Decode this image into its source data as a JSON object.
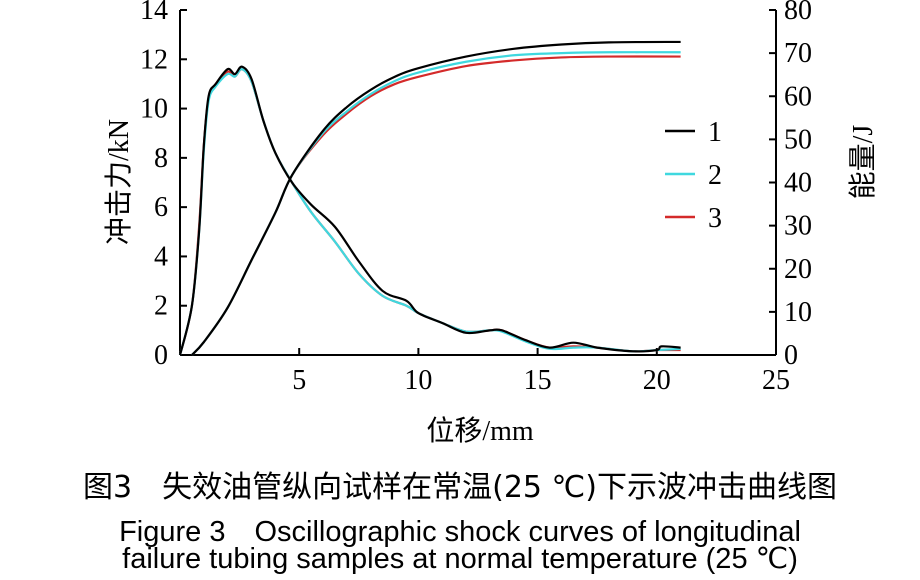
{
  "chart_data": {
    "type": "line",
    "xlabel": "位移/mm",
    "ylabel_left": "冲击力/kN",
    "ylabel_right": "能量/J",
    "xlim": [
      0,
      25
    ],
    "ylim_left": [
      0,
      14
    ],
    "ylim_right": [
      0,
      80
    ],
    "xticks": [
      5,
      10,
      15,
      20,
      25
    ],
    "yticks_left": [
      0,
      2,
      4,
      6,
      8,
      10,
      12,
      14
    ],
    "yticks_right": [
      0,
      10,
      20,
      30,
      40,
      50,
      60,
      70,
      80
    ],
    "legend_position": "right",
    "grid": false,
    "series": [
      {
        "name": "1",
        "color": "#000000",
        "force": [
          [
            0,
            0
          ],
          [
            0.5,
            2
          ],
          [
            0.8,
            5
          ],
          [
            1.0,
            8.5
          ],
          [
            1.2,
            10.5
          ],
          [
            1.5,
            11
          ],
          [
            2,
            11.6
          ],
          [
            2.3,
            11.4
          ],
          [
            2.6,
            11.7
          ],
          [
            3,
            11.2
          ],
          [
            3.5,
            9.5
          ],
          [
            4,
            8.2
          ],
          [
            4.7,
            7.0
          ],
          [
            5.5,
            6.1
          ],
          [
            6.5,
            5.2
          ],
          [
            7.5,
            3.8
          ],
          [
            8.5,
            2.6
          ],
          [
            9.5,
            2.2
          ],
          [
            10,
            1.7
          ],
          [
            11,
            1.3
          ],
          [
            12,
            0.9
          ],
          [
            13,
            1.0
          ],
          [
            13.5,
            1.0
          ],
          [
            14.5,
            0.6
          ],
          [
            15.5,
            0.3
          ],
          [
            16.5,
            0.5
          ],
          [
            17.5,
            0.3
          ],
          [
            19,
            0.15
          ],
          [
            20,
            0.2
          ],
          [
            20.2,
            0.35
          ],
          [
            21,
            0.3
          ]
        ],
        "energy": [
          [
            0.5,
            0
          ],
          [
            1,
            3
          ],
          [
            2,
            11
          ],
          [
            3,
            22
          ],
          [
            4,
            33
          ],
          [
            4.7,
            41.7
          ],
          [
            6,
            52
          ],
          [
            7,
            57.5
          ],
          [
            8,
            61.5
          ],
          [
            9,
            64.5
          ],
          [
            10,
            66.5
          ],
          [
            12,
            69.2
          ],
          [
            14,
            71
          ],
          [
            16,
            72
          ],
          [
            18,
            72.5
          ],
          [
            21,
            72.6
          ]
        ]
      },
      {
        "name": "2",
        "color": "#3fd8df",
        "force": [
          [
            0,
            0
          ],
          [
            0.5,
            2
          ],
          [
            0.8,
            5
          ],
          [
            1.0,
            8.3
          ],
          [
            1.2,
            10.3
          ],
          [
            1.5,
            10.9
          ],
          [
            2,
            11.4
          ],
          [
            2.3,
            11.3
          ],
          [
            2.6,
            11.6
          ],
          [
            3,
            11.1
          ],
          [
            3.5,
            9.5
          ],
          [
            4,
            8.2
          ],
          [
            4.7,
            7.0
          ],
          [
            5.5,
            5.8
          ],
          [
            6.5,
            4.6
          ],
          [
            7.5,
            3.3
          ],
          [
            8.5,
            2.4
          ],
          [
            9.5,
            2.0
          ],
          [
            10,
            1.7
          ],
          [
            11,
            1.3
          ],
          [
            12,
            0.95
          ],
          [
            13,
            1.0
          ],
          [
            13.5,
            0.95
          ],
          [
            14.5,
            0.55
          ],
          [
            15.5,
            0.25
          ],
          [
            16.5,
            0.3
          ],
          [
            17.5,
            0.3
          ],
          [
            19,
            0.15
          ],
          [
            20,
            0.2
          ],
          [
            21,
            0.25
          ]
        ],
        "energy": [
          [
            0.5,
            0
          ],
          [
            1,
            3
          ],
          [
            2,
            11
          ],
          [
            3,
            22
          ],
          [
            4,
            33
          ],
          [
            4.7,
            41.7
          ],
          [
            6,
            51.5
          ],
          [
            7,
            56.5
          ],
          [
            8,
            60.5
          ],
          [
            9,
            63.5
          ],
          [
            10,
            65.5
          ],
          [
            12,
            68
          ],
          [
            14,
            69.5
          ],
          [
            16,
            70
          ],
          [
            18,
            70.2
          ],
          [
            21,
            70.2
          ]
        ]
      },
      {
        "name": "3",
        "color": "#d42a2a",
        "force": [
          [
            0,
            0
          ],
          [
            0.5,
            2
          ],
          [
            0.8,
            5.2
          ],
          [
            1.0,
            8.5
          ],
          [
            1.2,
            10.4
          ],
          [
            1.5,
            11
          ],
          [
            2,
            11.5
          ],
          [
            2.3,
            11.3
          ],
          [
            2.6,
            11.6
          ],
          [
            3,
            11.1
          ],
          [
            3.5,
            9.5
          ],
          [
            4,
            8.2
          ],
          [
            4.7,
            7.0
          ],
          [
            5.5,
            5.8
          ],
          [
            6.5,
            4.6
          ],
          [
            7.5,
            3.3
          ],
          [
            8.5,
            2.4
          ],
          [
            9.5,
            2.0
          ],
          [
            10,
            1.7
          ],
          [
            11,
            1.3
          ],
          [
            12,
            0.95
          ],
          [
            13,
            1.0
          ],
          [
            13.5,
            1.0
          ],
          [
            14.5,
            0.6
          ],
          [
            15.5,
            0.3
          ],
          [
            16.5,
            0.35
          ],
          [
            17.5,
            0.3
          ],
          [
            19,
            0.15
          ],
          [
            20,
            0.2
          ],
          [
            21,
            0.2
          ]
        ],
        "energy": [
          [
            0.5,
            0
          ],
          [
            1,
            3
          ],
          [
            2,
            11
          ],
          [
            3,
            22
          ],
          [
            4,
            33
          ],
          [
            4.7,
            41.7
          ],
          [
            6,
            51
          ],
          [
            7,
            56
          ],
          [
            8,
            60
          ],
          [
            9,
            62.8
          ],
          [
            10,
            64.5
          ],
          [
            12,
            67
          ],
          [
            14,
            68.3
          ],
          [
            16,
            69
          ],
          [
            18,
            69.2
          ],
          [
            21,
            69.2
          ]
        ]
      }
    ]
  },
  "caption": {
    "cn": "图3　失效油管纵向试样在常温(25 ℃)下示波冲击曲线图",
    "en_line1": "Figure 3　Oscillographic shock curves of longitudinal",
    "en_line2": "failure tubing samples at normal temperature (25 ℃)"
  }
}
